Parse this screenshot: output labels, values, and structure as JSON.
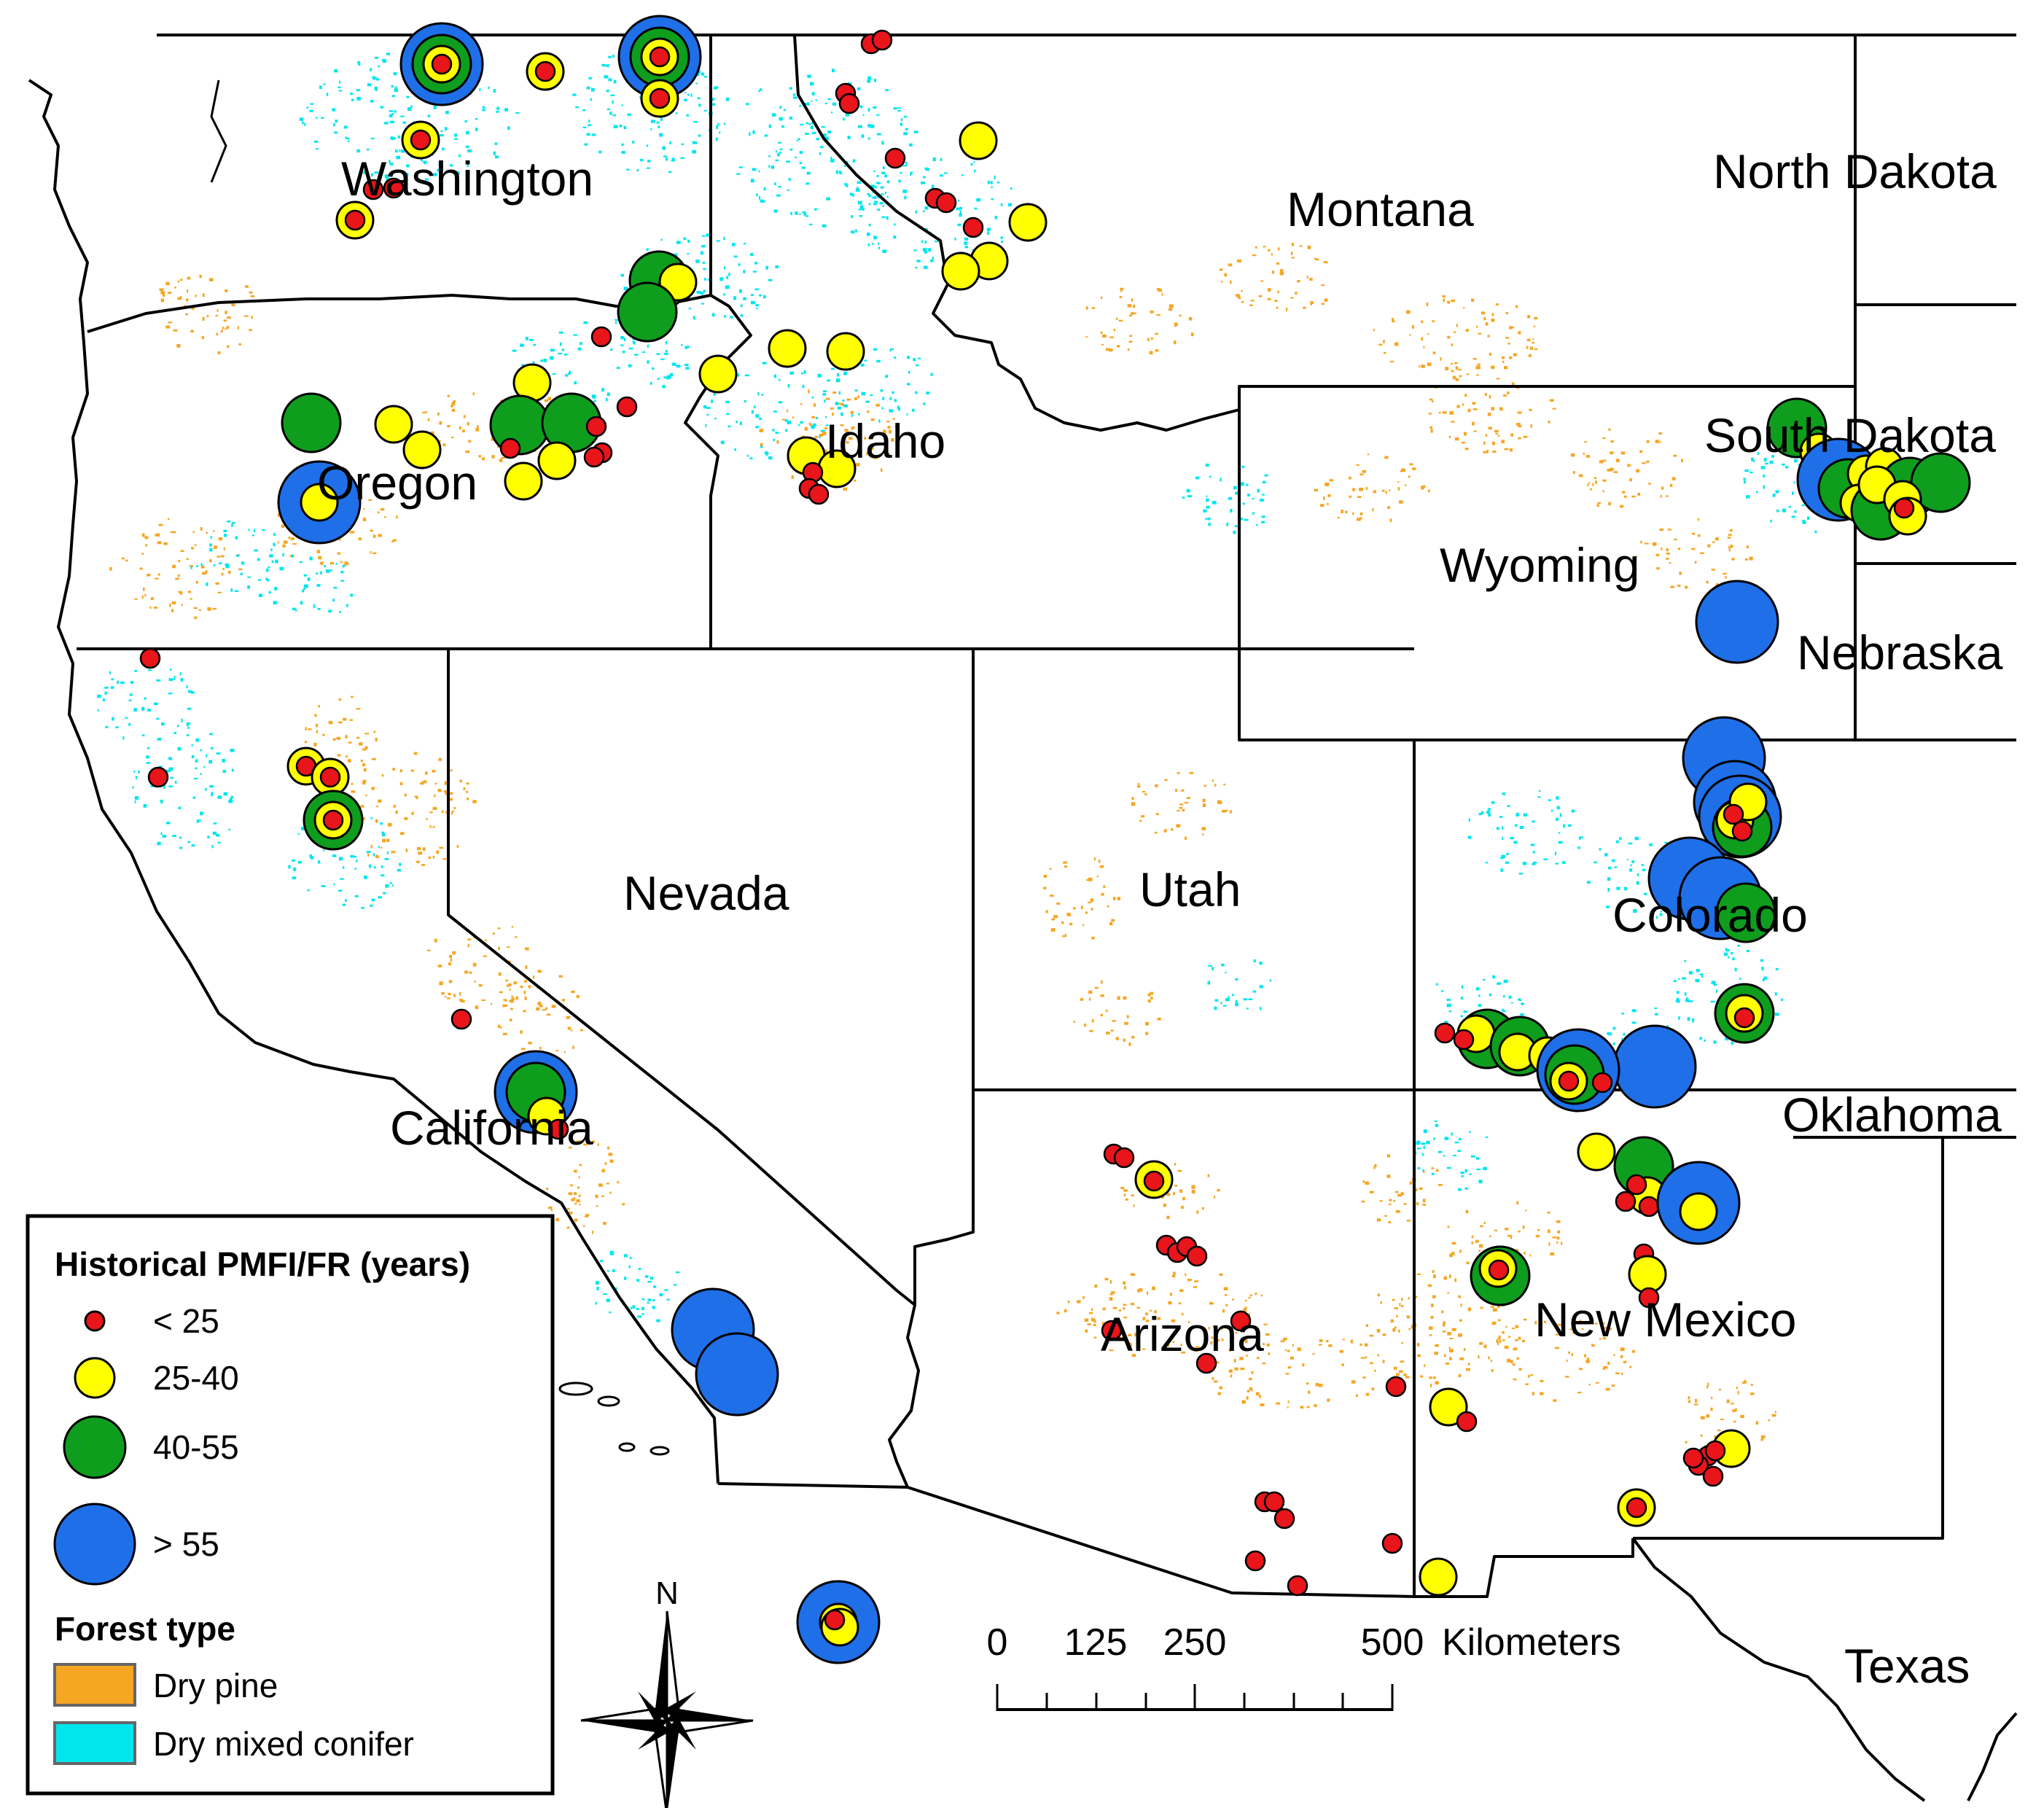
{
  "colors": {
    "dry_pine": "#f5a623",
    "dry_mixed_conifer": "#00e5ee",
    "lt25": "#e8151b",
    "c25_40": "#ffff00",
    "c40_55": "#0f9d1e",
    "gt55": "#1f6fe8"
  },
  "states": {
    "washington": "Washington",
    "oregon": "Oregon",
    "california": "California",
    "nevada": "Nevada",
    "idaho": "Idaho",
    "montana": "Montana",
    "wyoming": "Wyoming",
    "utah": "Utah",
    "colorado": "Colorado",
    "arizona": "Arizona",
    "new_mexico": "New Mexico",
    "north_dakota": "North Dakota",
    "south_dakota": "South Dakota",
    "nebraska": "Nebraska",
    "oklahoma": "Oklahoma",
    "texas": "Texas"
  },
  "legend": {
    "pmfi_title": "Historical PMFI/FR (years)",
    "classes": [
      {
        "label": "< 25",
        "icon": "small-red-circle-icon"
      },
      {
        "label": "25-40",
        "icon": "yellow-circle-icon"
      },
      {
        "label": "40-55",
        "icon": "green-circle-icon"
      },
      {
        "label": "> 55",
        "icon": "large-blue-circle-icon"
      }
    ],
    "forest_title": "Forest type",
    "forest_types": [
      {
        "label": "Dry pine"
      },
      {
        "label": "Dry mixed conifer"
      }
    ]
  },
  "north_arrow": {
    "label": "N",
    "icon": "north-arrow-icon"
  },
  "scale_bar": {
    "ticks": [
      "0",
      "125",
      "250",
      "500"
    ],
    "unit": "Kilometers"
  }
}
